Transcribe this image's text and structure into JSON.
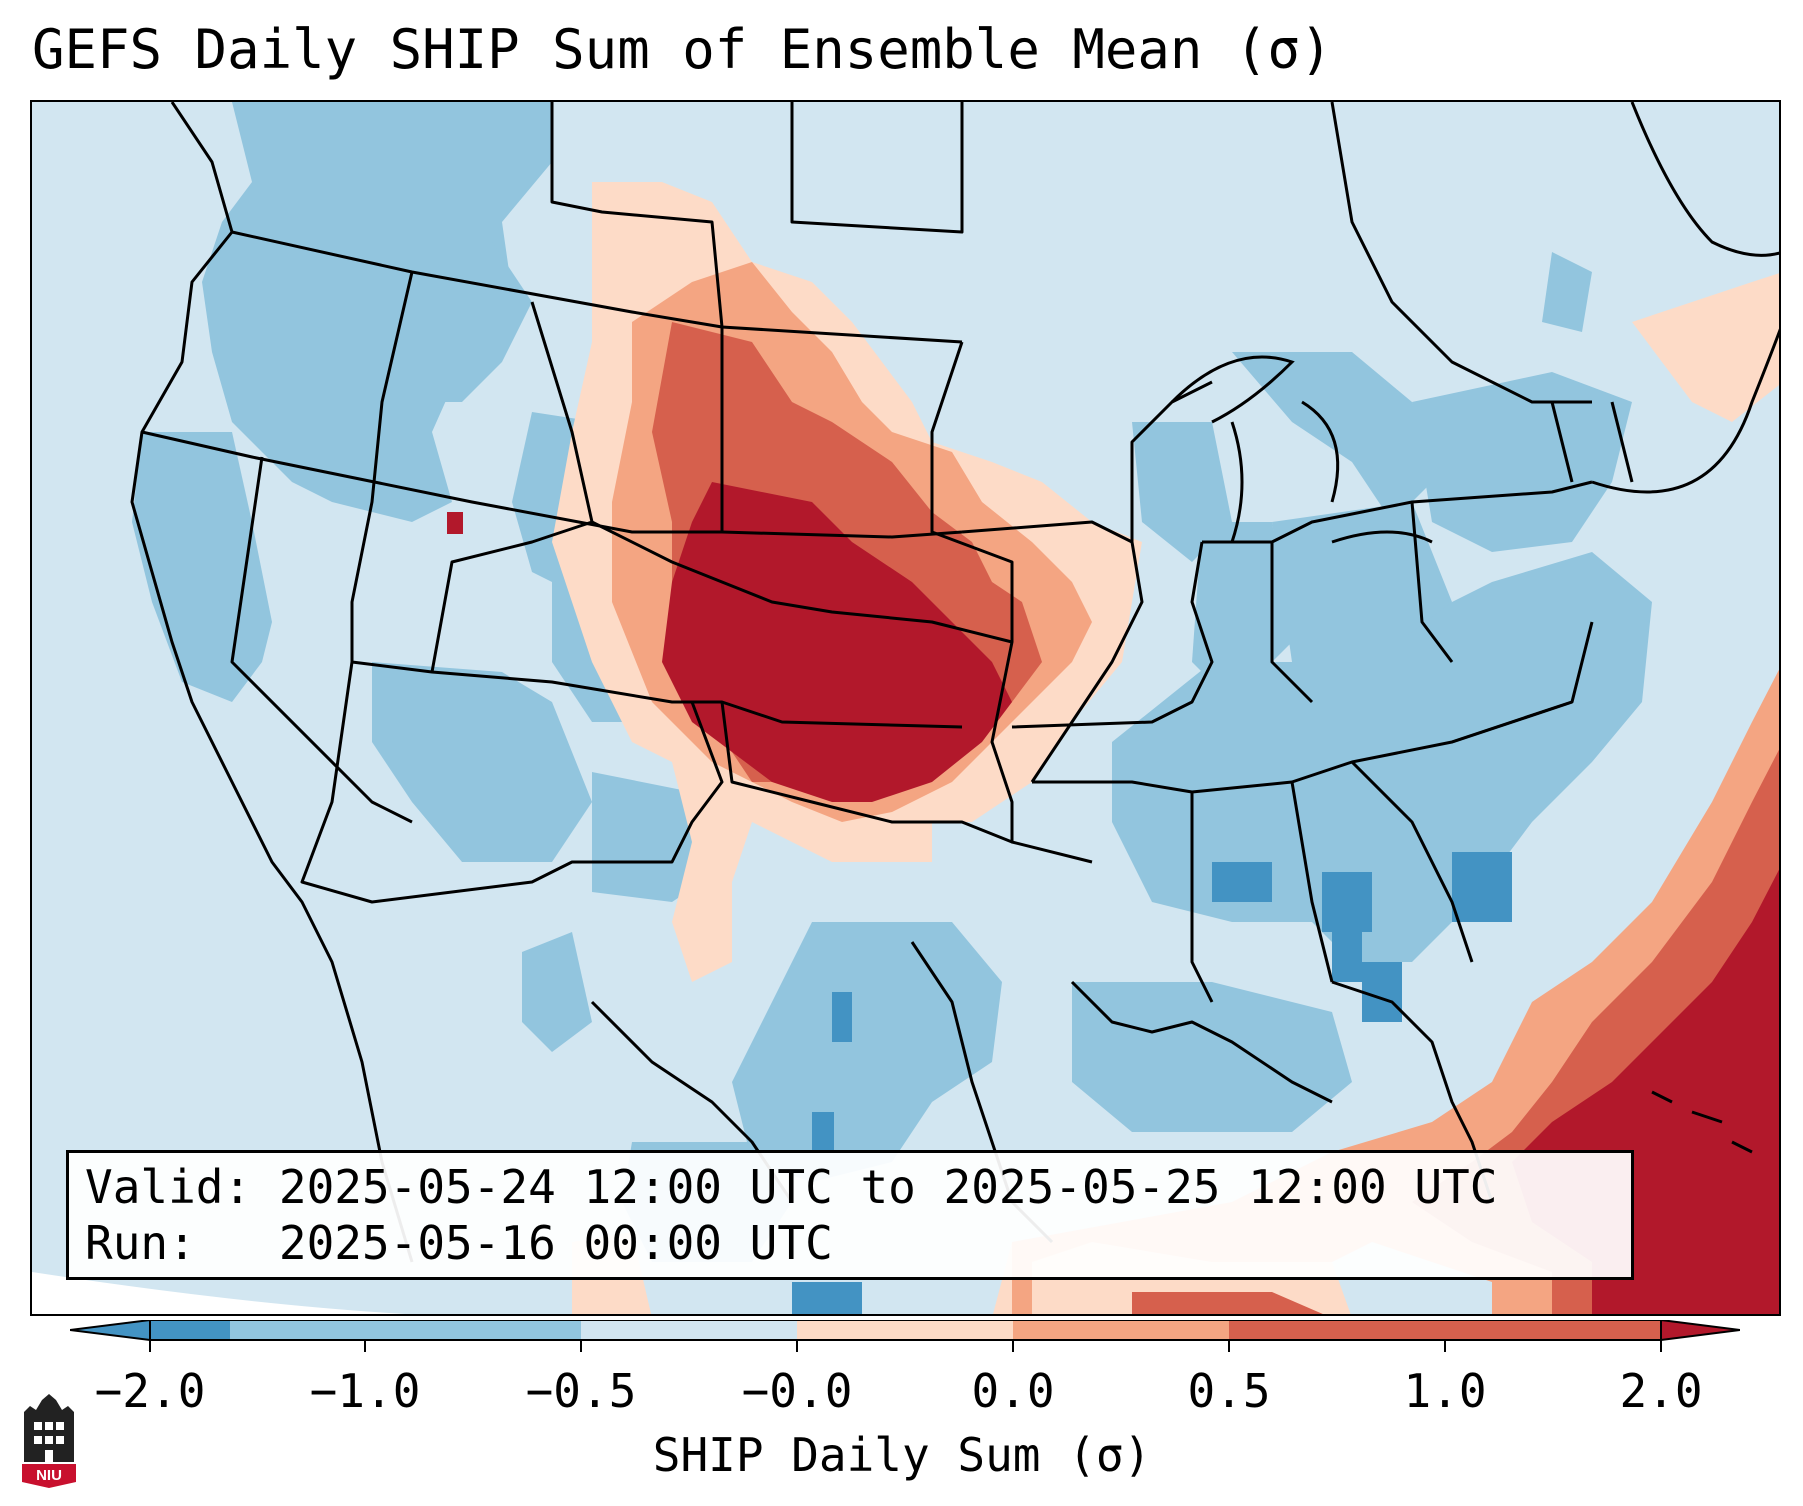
{
  "title": "GEFS Daily SHIP Sum of Ensemble Mean (σ)",
  "info": {
    "valid_label": "Valid:",
    "valid_value": "2025-05-24 12:00 UTC to 2025-05-25 12:00 UTC",
    "run_label": "Run:",
    "run_value": "2025-05-16 00:00 UTC"
  },
  "colorbar": {
    "label": "SHIP Daily Sum (σ)",
    "ticks": [
      "−2.0",
      "−1.0",
      "−0.5",
      "−0.0",
      "0.0",
      "0.5",
      "1.0",
      "2.0"
    ],
    "colors": {
      "below_-1": "#4393c3",
      "-1_to_-0.5": "#92c5de",
      "-0.5_to_0": "#d1e5f0",
      "0_to_0.5": "#fddbc7",
      "0.5_to_1": "#f4a582",
      "1_to_2": "#d6604d",
      "above_2": "#b2182b"
    }
  },
  "logo": {
    "text": "NIU"
  }
}
